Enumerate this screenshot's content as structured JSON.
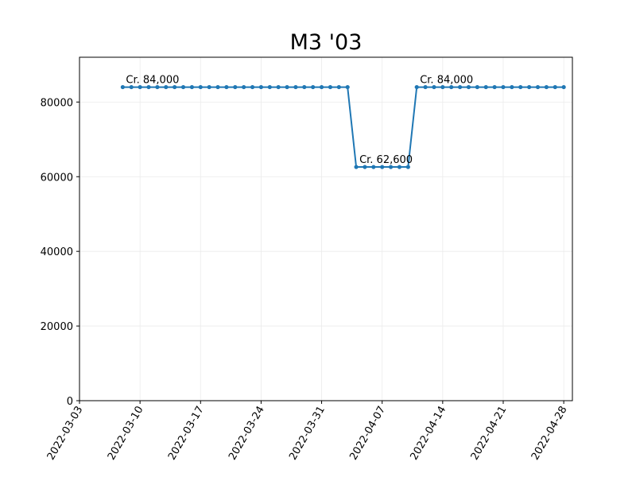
{
  "chart_data": {
    "type": "line",
    "title": "M3 '03",
    "xlabel": "",
    "ylabel": "",
    "xlim": [
      "2022-03-03",
      "2022-04-29"
    ],
    "ylim": [
      0,
      92000
    ],
    "grid": true,
    "colors": {
      "line": "#1f77b4",
      "grid": "#ebebeb",
      "axes": "#000000"
    },
    "x_ticks": [
      "2022-03-03",
      "2022-03-10",
      "2022-03-17",
      "2022-03-24",
      "2022-03-31",
      "2022-04-07",
      "2022-04-14",
      "2022-04-21",
      "2022-04-28"
    ],
    "y_ticks": [
      0,
      20000,
      40000,
      60000,
      80000
    ],
    "y_tick_labels": [
      "0",
      "20000",
      "40000",
      "60000",
      "80000"
    ],
    "series": [
      {
        "x": [
          "2022-03-08",
          "2022-03-09",
          "2022-03-10",
          "2022-03-11",
          "2022-03-12",
          "2022-03-13",
          "2022-03-14",
          "2022-03-15",
          "2022-03-16",
          "2022-03-17",
          "2022-03-18",
          "2022-03-19",
          "2022-03-20",
          "2022-03-21",
          "2022-03-22",
          "2022-03-23",
          "2022-03-24",
          "2022-03-25",
          "2022-03-26",
          "2022-03-27",
          "2022-03-28",
          "2022-03-29",
          "2022-03-30",
          "2022-03-31",
          "2022-04-01",
          "2022-04-02",
          "2022-04-03",
          "2022-04-04",
          "2022-04-05",
          "2022-04-06",
          "2022-04-07",
          "2022-04-08",
          "2022-04-09",
          "2022-04-10",
          "2022-04-11",
          "2022-04-12",
          "2022-04-13",
          "2022-04-14",
          "2022-04-15",
          "2022-04-16",
          "2022-04-17",
          "2022-04-18",
          "2022-04-19",
          "2022-04-20",
          "2022-04-21",
          "2022-04-22",
          "2022-04-23",
          "2022-04-24",
          "2022-04-25",
          "2022-04-26",
          "2022-04-27",
          "2022-04-28"
        ],
        "values": [
          84000,
          84000,
          84000,
          84000,
          84000,
          84000,
          84000,
          84000,
          84000,
          84000,
          84000,
          84000,
          84000,
          84000,
          84000,
          84000,
          84000,
          84000,
          84000,
          84000,
          84000,
          84000,
          84000,
          84000,
          84000,
          84000,
          84000,
          62600,
          62600,
          62600,
          62600,
          62600,
          62600,
          62600,
          84000,
          84000,
          84000,
          84000,
          84000,
          84000,
          84000,
          84000,
          84000,
          84000,
          84000,
          84000,
          84000,
          84000,
          84000,
          84000,
          84000,
          84000
        ]
      }
    ],
    "annotations": [
      {
        "text": "Cr. 84,000",
        "x": "2022-03-08",
        "y": 84000
      },
      {
        "text": "Cr. 62,600",
        "x": "2022-04-04",
        "y": 62600
      },
      {
        "text": "Cr. 84,000",
        "x": "2022-04-11",
        "y": 84000
      }
    ]
  }
}
